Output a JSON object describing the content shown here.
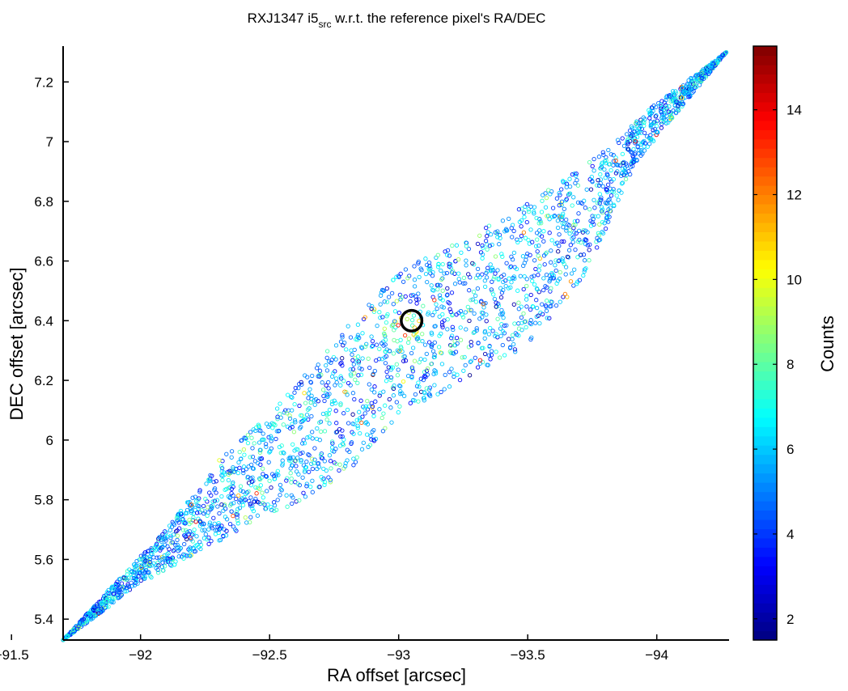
{
  "chart_data": {
    "type": "scatter",
    "title_main": "RXJ1347 i5",
    "title_subscript": "src",
    "title_rest": " w.r.t. the reference pixel's RA/DEC",
    "xlabel": "RA offset [arcsec]",
    "ylabel": "DEC offset [arcsec]",
    "colorbar_label": "Counts",
    "xlim": [
      -91.7,
      -94.28
    ],
    "ylim": [
      5.33,
      7.32
    ],
    "x_reversed": true,
    "xticks": [
      -91.5,
      -92,
      -92.5,
      -93,
      -93.5,
      -94
    ],
    "xtick_labels": [
      "−91.5",
      "−92",
      "−92.5",
      "−93",
      "−93.5",
      "−94"
    ],
    "yticks": [
      5.4,
      5.6,
      5.8,
      6.0,
      6.2,
      6.4,
      6.6,
      6.8,
      7.0,
      7.2
    ],
    "ytick_labels": [
      "5.4",
      "5.6",
      "5.8",
      "6",
      "6.2",
      "6.4",
      "6.6",
      "6.8",
      "7",
      "7.2"
    ],
    "clim": [
      1.5,
      15.5
    ],
    "cticks": [
      2,
      4,
      6,
      8,
      10,
      12,
      14
    ],
    "ctick_labels": [
      "2",
      "4",
      "6",
      "8",
      "10",
      "12",
      "14"
    ],
    "colormap": "jet",
    "marker": "open circle",
    "grid": false,
    "footprint_lower_edge": [
      [
        -91.7,
        5.33
      ],
      [
        -92.0,
        5.52
      ],
      [
        -92.3,
        5.66
      ],
      [
        -92.6,
        5.79
      ],
      [
        -92.8,
        5.89
      ],
      [
        -93.0,
        6.08
      ],
      [
        -93.2,
        6.17
      ],
      [
        -93.5,
        6.32
      ],
      [
        -93.72,
        6.55
      ],
      [
        -93.92,
        6.93
      ],
      [
        -94.1,
        7.12
      ],
      [
        -94.27,
        7.3
      ]
    ],
    "footprint_upper_edge": [
      [
        -91.7,
        5.33
      ],
      [
        -91.9,
        5.52
      ],
      [
        -92.1,
        5.7
      ],
      [
        -92.3,
        5.93
      ],
      [
        -92.6,
        6.18
      ],
      [
        -92.8,
        6.38
      ],
      [
        -93.0,
        6.56
      ],
      [
        -93.2,
        6.66
      ],
      [
        -93.4,
        6.74
      ],
      [
        -93.6,
        6.85
      ],
      [
        -93.8,
        6.97
      ],
      [
        -94.0,
        7.13
      ],
      [
        -94.27,
        7.3
      ]
    ],
    "mean_counts": 5.5,
    "hot_region": {
      "x": -93.03,
      "y": 6.37,
      "counts": 14
    },
    "highlight_circle": {
      "x": -93.05,
      "y": 6.4,
      "radius_arcsec": 0.04
    }
  }
}
